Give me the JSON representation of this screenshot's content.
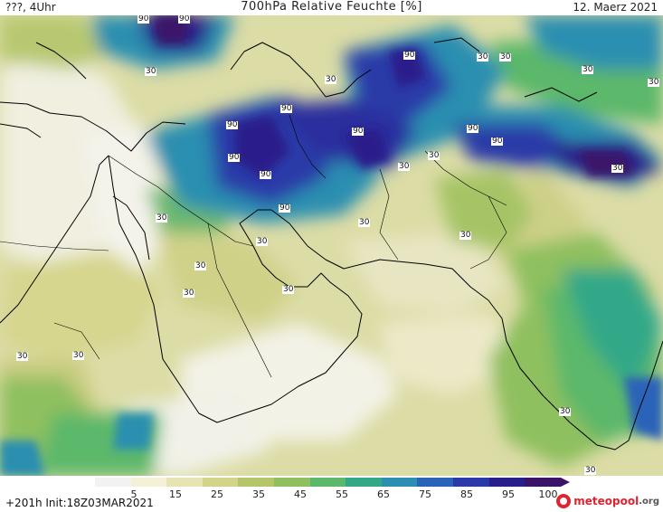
{
  "header": {
    "left": "???, 4Uhr",
    "title": "700hPa Relative Feuchte [%]",
    "right": "12. Maerz 2021"
  },
  "footer": {
    "run_info": "+201h  Init:18Z03MAR2021"
  },
  "brand": {
    "name": "meteopool",
    "suffix": ".org"
  },
  "legend": {
    "ticks": [
      "5",
      "15",
      "25",
      "35",
      "45",
      "55",
      "65",
      "75",
      "85",
      "95",
      "100"
    ],
    "colors": [
      "#f2f2f2",
      "#f4f1d6",
      "#e6e4b2",
      "#d2d48a",
      "#b5c66a",
      "#8fc05e",
      "#5cb86a",
      "#33a888",
      "#2a8fb0",
      "#2a63b8",
      "#2a3aa8",
      "#2a1f8a",
      "#3b1369"
    ]
  },
  "contour_labels": [
    {
      "text": "90"
    },
    {
      "text": "90"
    },
    {
      "text": "30"
    },
    {
      "text": "90"
    },
    {
      "text": "30"
    },
    {
      "text": "30"
    },
    {
      "text": "30"
    },
    {
      "text": "30"
    },
    {
      "text": "90"
    },
    {
      "text": "30"
    },
    {
      "text": "90"
    },
    {
      "text": "90"
    },
    {
      "text": "90"
    },
    {
      "text": "90"
    },
    {
      "text": "90"
    },
    {
      "text": "90"
    },
    {
      "text": "30"
    },
    {
      "text": "90"
    },
    {
      "text": "30"
    },
    {
      "text": "30"
    },
    {
      "text": "30"
    },
    {
      "text": "30"
    },
    {
      "text": "30"
    },
    {
      "text": "30"
    },
    {
      "text": "30"
    },
    {
      "text": "30"
    },
    {
      "text": "30"
    },
    {
      "text": "30"
    },
    {
      "text": "30"
    },
    {
      "text": "30"
    },
    {
      "text": "30"
    }
  ]
}
